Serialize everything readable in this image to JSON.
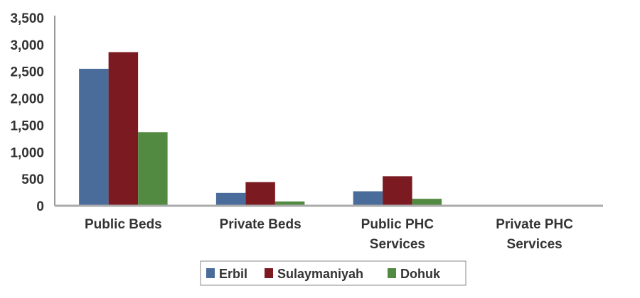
{
  "chart_data": {
    "type": "bar",
    "title": "",
    "xlabel": "",
    "ylabel": "",
    "categories": [
      "Public Beds",
      "Private Beds",
      "Public PHC Services",
      "Private PHC Services"
    ],
    "category_lines": [
      [
        "Public Beds"
      ],
      [
        "Private Beds"
      ],
      [
        "Public PHC",
        "Services"
      ],
      [
        "Private PHC",
        "Services"
      ]
    ],
    "series": [
      {
        "name": "Erbil",
        "color": "#4a6c9b",
        "values": [
          2550,
          240,
          270,
          15
        ]
      },
      {
        "name": "Sulaymaniyah",
        "color": "#7c1a22",
        "values": [
          2860,
          440,
          550,
          15
        ]
      },
      {
        "name": "Dohuk",
        "color": "#538a42",
        "values": [
          1370,
          80,
          130,
          0
        ]
      }
    ],
    "ylim": [
      0,
      3500
    ],
    "yticks": [
      0,
      500,
      1000,
      1500,
      2000,
      2500,
      3000,
      3500
    ],
    "ytick_labels": [
      "0",
      "500",
      "1,000",
      "1,500",
      "2,000",
      "2,500",
      "3,000",
      "3,500"
    ],
    "grid": false,
    "legend_position": "bottom"
  }
}
